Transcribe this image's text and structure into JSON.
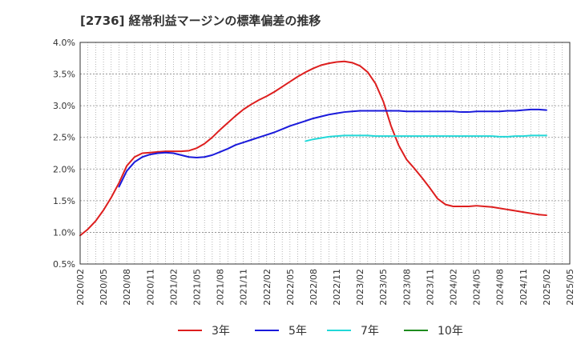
{
  "chart_data": {
    "type": "line",
    "title": "[2736]  経常利益マージンの標準偏差の推移",
    "xlabel": "",
    "ylabel": "",
    "ylim": [
      0.005,
      0.04
    ],
    "y_ticks": [
      "0.5%",
      "1.0%",
      "1.5%",
      "2.0%",
      "2.5%",
      "3.0%",
      "3.5%",
      "4.0%"
    ],
    "y_tick_values": [
      0.005,
      0.01,
      0.015,
      0.02,
      0.025,
      0.03,
      0.035,
      0.04
    ],
    "x_ticks": [
      "2020/02",
      "2020/05",
      "2020/08",
      "2020/11",
      "2021/02",
      "2021/05",
      "2021/08",
      "2021/11",
      "2022/02",
      "2022/05",
      "2022/08",
      "2022/11",
      "2023/02",
      "2023/05",
      "2023/08",
      "2023/11",
      "2024/02",
      "2024/05",
      "2024/08",
      "2024/11",
      "2025/02",
      "2025/05"
    ],
    "grid": true,
    "legend_position": "bottom",
    "series": [
      {
        "name": "3年",
        "color": "#dd1e1e",
        "x": [
          "2020/02",
          "2020/03",
          "2020/04",
          "2020/05",
          "2020/06",
          "2020/07",
          "2020/08",
          "2020/09",
          "2020/10",
          "2020/11",
          "2020/12",
          "2021/01",
          "2021/02",
          "2021/03",
          "2021/04",
          "2021/05",
          "2021/06",
          "2021/07",
          "2021/08",
          "2021/09",
          "2021/10",
          "2021/11",
          "2021/12",
          "2022/01",
          "2022/02",
          "2022/03",
          "2022/04",
          "2022/05",
          "2022/06",
          "2022/07",
          "2022/08",
          "2022/09",
          "2022/10",
          "2022/11",
          "2022/12",
          "2023/01",
          "2023/02",
          "2023/03",
          "2023/04",
          "2023/05",
          "2023/06",
          "2023/07",
          "2023/08",
          "2023/09",
          "2023/10",
          "2023/11",
          "2023/12",
          "2024/01",
          "2024/02",
          "2024/03",
          "2024/04",
          "2024/05",
          "2024/06",
          "2024/07",
          "2024/08",
          "2024/09",
          "2024/10",
          "2024/11",
          "2024/12",
          "2025/01",
          "2025/02"
        ],
        "values": [
          0.0095,
          0.0105,
          0.0118,
          0.0135,
          0.0155,
          0.0178,
          0.0205,
          0.0219,
          0.0225,
          0.0226,
          0.0227,
          0.0228,
          0.0228,
          0.0228,
          0.0229,
          0.0233,
          0.024,
          0.025,
          0.0262,
          0.0273,
          0.0284,
          0.0294,
          0.0302,
          0.0309,
          0.0315,
          0.0322,
          0.033,
          0.0338,
          0.0346,
          0.0353,
          0.0359,
          0.0364,
          0.0367,
          0.0369,
          0.037,
          0.0368,
          0.0363,
          0.0353,
          0.0335,
          0.0307,
          0.0268,
          0.0237,
          0.0215,
          0.0201,
          0.0186,
          0.017,
          0.0153,
          0.0144,
          0.0141,
          0.0141,
          0.0141,
          0.0142,
          0.0141,
          0.014,
          0.0138,
          0.0136,
          0.0134,
          0.0132,
          0.013,
          0.0128,
          0.0127
        ]
      },
      {
        "name": "5年",
        "color": "#1a1adb",
        "x": [
          "2020/07",
          "2020/08",
          "2020/09",
          "2020/10",
          "2020/11",
          "2020/12",
          "2021/01",
          "2021/02",
          "2021/03",
          "2021/04",
          "2021/05",
          "2021/06",
          "2021/07",
          "2021/08",
          "2021/09",
          "2021/10",
          "2021/11",
          "2021/12",
          "2022/01",
          "2022/02",
          "2022/03",
          "2022/04",
          "2022/05",
          "2022/06",
          "2022/07",
          "2022/08",
          "2022/09",
          "2022/10",
          "2022/11",
          "2022/12",
          "2023/01",
          "2023/02",
          "2023/03",
          "2023/04",
          "2023/05",
          "2023/06",
          "2023/07",
          "2023/08",
          "2023/09",
          "2023/10",
          "2023/11",
          "2023/12",
          "2024/01",
          "2024/02",
          "2024/03",
          "2024/04",
          "2024/05",
          "2024/06",
          "2024/07",
          "2024/08",
          "2024/09",
          "2024/10",
          "2024/11",
          "2024/12",
          "2025/01",
          "2025/02"
        ],
        "values": [
          0.0172,
          0.0197,
          0.0211,
          0.0219,
          0.0223,
          0.0225,
          0.0226,
          0.0225,
          0.0222,
          0.0219,
          0.0218,
          0.0219,
          0.0222,
          0.0227,
          0.0232,
          0.0238,
          0.0242,
          0.0246,
          0.025,
          0.0254,
          0.0258,
          0.0263,
          0.0268,
          0.0272,
          0.0276,
          0.028,
          0.0283,
          0.0286,
          0.0288,
          0.029,
          0.0291,
          0.0292,
          0.0292,
          0.0292,
          0.0292,
          0.0292,
          0.0292,
          0.0291,
          0.0291,
          0.0291,
          0.0291,
          0.0291,
          0.0291,
          0.0291,
          0.029,
          0.029,
          0.0291,
          0.0291,
          0.0291,
          0.0291,
          0.0292,
          0.0292,
          0.0293,
          0.0294,
          0.0294,
          0.0293
        ]
      },
      {
        "name": "7年",
        "color": "#22d8d8",
        "x": [
          "2022/07",
          "2022/08",
          "2022/09",
          "2022/10",
          "2022/11",
          "2022/12",
          "2023/01",
          "2023/02",
          "2023/03",
          "2023/04",
          "2023/05",
          "2023/06",
          "2023/07",
          "2023/08",
          "2023/09",
          "2023/10",
          "2023/11",
          "2023/12",
          "2024/01",
          "2024/02",
          "2024/03",
          "2024/04",
          "2024/05",
          "2024/06",
          "2024/07",
          "2024/08",
          "2024/09",
          "2024/10",
          "2024/11",
          "2024/12",
          "2025/01",
          "2025/02"
        ],
        "values": [
          0.0244,
          0.0247,
          0.0249,
          0.0251,
          0.0252,
          0.0253,
          0.0253,
          0.0253,
          0.0253,
          0.0252,
          0.0252,
          0.0252,
          0.0252,
          0.0252,
          0.0252,
          0.0252,
          0.0252,
          0.0252,
          0.0252,
          0.0252,
          0.0252,
          0.0252,
          0.0252,
          0.0252,
          0.0252,
          0.0251,
          0.0251,
          0.0252,
          0.0252,
          0.0253,
          0.0253,
          0.0253
        ]
      },
      {
        "name": "10年",
        "color": "#1e8c1e",
        "x": [],
        "values": []
      }
    ]
  }
}
